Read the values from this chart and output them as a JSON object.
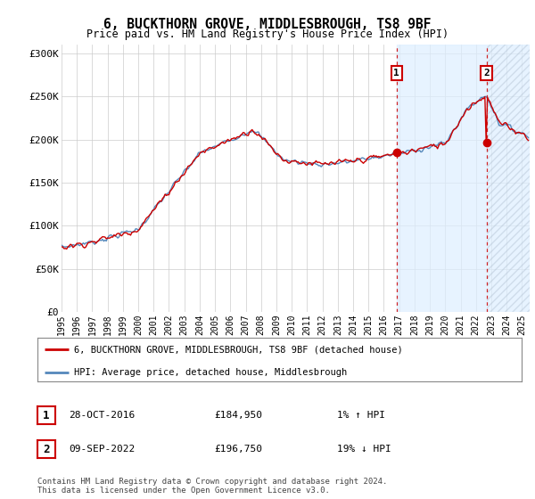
{
  "title": "6, BUCKTHORN GROVE, MIDDLESBROUGH, TS8 9BF",
  "subtitle": "Price paid vs. HM Land Registry's House Price Index (HPI)",
  "ylabel_ticks": [
    "£0",
    "£50K",
    "£100K",
    "£150K",
    "£200K",
    "£250K",
    "£300K"
  ],
  "ytick_values": [
    0,
    50000,
    100000,
    150000,
    200000,
    250000,
    300000
  ],
  "ylim": [
    0,
    310000
  ],
  "xlim_start": 1995.0,
  "xlim_end": 2025.5,
  "sale1_x": 2016.83,
  "sale1_y": 184950,
  "sale2_x": 2022.69,
  "sale2_y": 196750,
  "sale1_date": "28-OCT-2016",
  "sale1_price": "£184,950",
  "sale1_hpi": "1% ↑ HPI",
  "sale2_date": "09-SEP-2022",
  "sale2_price": "£196,750",
  "sale2_hpi": "19% ↓ HPI",
  "line_color_property": "#cc0000",
  "line_color_hpi": "#5588bb",
  "fill_color_hpi": "#ddeeff",
  "marker_box_color": "#cc0000",
  "legend_label1": "6, BUCKTHORN GROVE, MIDDLESBROUGH, TS8 9BF (detached house)",
  "legend_label2": "HPI: Average price, detached house, Middlesbrough",
  "footer1": "Contains HM Land Registry data © Crown copyright and database right 2024.",
  "footer2": "This data is licensed under the Open Government Licence v3.0.",
  "plot_bg": "#ffffff",
  "vline_color": "#cc0000"
}
